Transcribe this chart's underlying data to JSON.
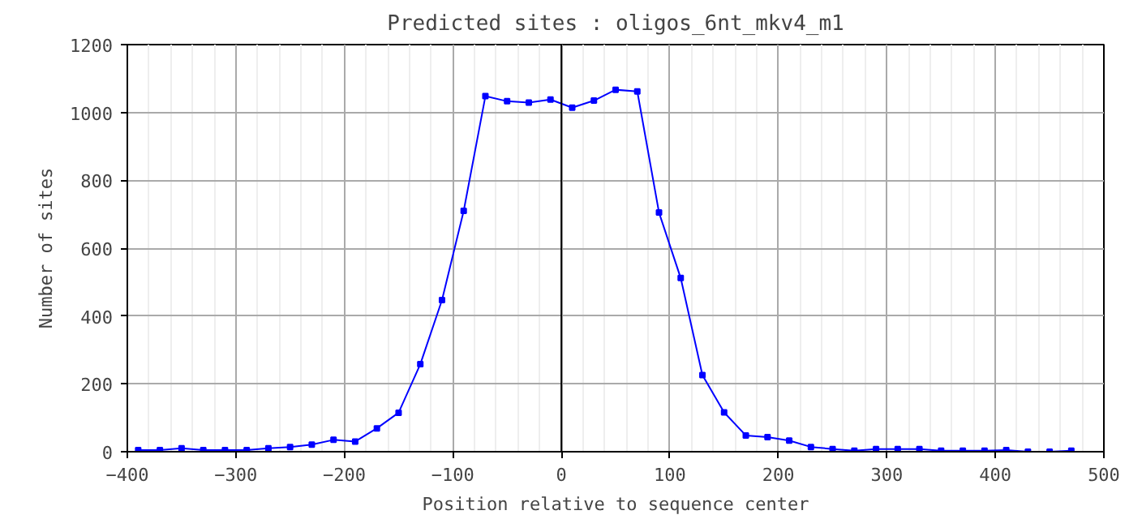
{
  "chart_data": {
    "type": "line",
    "title": "Predicted sites : oligos_6nt_mkv4_m1",
    "xlabel": "Position relative to sequence center",
    "ylabel": "Number of sites",
    "x": [
      -390,
      -370,
      -350,
      -330,
      -310,
      -290,
      -270,
      -250,
      -230,
      -210,
      -190,
      -170,
      -150,
      -130,
      -110,
      -90,
      -70,
      -50,
      -30,
      -10,
      10,
      30,
      50,
      70,
      90,
      110,
      130,
      150,
      170,
      190,
      210,
      230,
      250,
      270,
      290,
      310,
      330,
      350,
      370,
      390,
      410,
      430,
      450,
      470
    ],
    "series": [
      {
        "color": "#0000ff",
        "values": [
          5,
          5,
          10,
          5,
          5,
          5,
          10,
          14,
          21,
          35,
          30,
          69,
          115,
          258,
          447,
          710,
          1048,
          1033,
          1029,
          1038,
          1014,
          1035,
          1067,
          1062,
          705,
          512,
          226,
          116,
          48,
          43,
          33,
          14,
          8,
          3,
          8,
          8,
          8,
          3,
          3,
          3,
          5,
          0,
          0,
          3
        ]
      }
    ],
    "xlim": [
      -400,
      500
    ],
    "xticks": [
      -400,
      -300,
      -200,
      -100,
      0,
      100,
      200,
      300,
      400,
      500
    ],
    "ylim": [
      0,
      1200
    ],
    "yticks": [
      0,
      200,
      400,
      600,
      800,
      1000,
      1200
    ],
    "ref_lines": [
      {
        "axis": "x",
        "value": 0,
        "color": "#000000"
      }
    ],
    "grid": true,
    "marker": "square",
    "line_style": "solid"
  }
}
